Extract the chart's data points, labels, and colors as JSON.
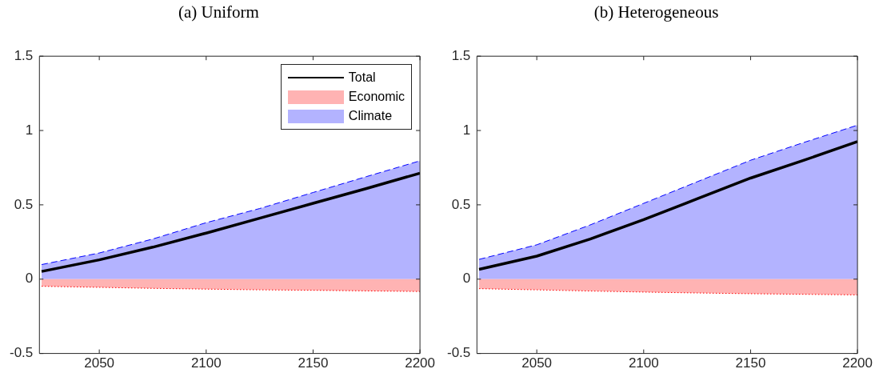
{
  "chart_data": [
    {
      "type": "area",
      "title": "(a) Uniform",
      "x": [
        2023,
        2050,
        2075,
        2100,
        2125,
        2150,
        2175,
        2200
      ],
      "xlim": [
        2022,
        2200
      ],
      "xticks": [
        2050,
        2100,
        2150,
        2200
      ],
      "ylim": [
        -0.5,
        1.5
      ],
      "yticks": [
        -0.5,
        0,
        0.5,
        1,
        1.5
      ],
      "grid": false,
      "legend": "top right",
      "series": [
        {
          "name": "Total",
          "type": "line",
          "color": "#000000",
          "values": [
            0.052,
            0.13,
            0.215,
            0.31,
            0.41,
            0.51,
            0.61,
            0.713
          ]
        },
        {
          "name": "Economic",
          "color": "#ffb3b3",
          "line_style": "dotted",
          "values": [
            -0.048,
            -0.055,
            -0.062,
            -0.067,
            -0.072,
            -0.075,
            -0.079,
            -0.083
          ]
        },
        {
          "name": "Climate",
          "color": "#b3b3ff",
          "line_style": "dashed",
          "values": [
            0.098,
            0.176,
            0.27,
            0.38,
            0.475,
            0.583,
            0.69,
            0.796
          ]
        }
      ]
    },
    {
      "type": "area",
      "title": "(b) Heterogeneous",
      "x": [
        2023,
        2050,
        2075,
        2100,
        2125,
        2150,
        2175,
        2200
      ],
      "xlim": [
        2022,
        2200
      ],
      "xticks": [
        2050,
        2100,
        2150,
        2200
      ],
      "ylim": [
        -0.5,
        1.5
      ],
      "yticks": [
        -0.5,
        0,
        0.5,
        1,
        1.5
      ],
      "grid": false,
      "legend": false,
      "series": [
        {
          "type": "line",
          "color": "#000000",
          "values": [
            0.066,
            0.155,
            0.27,
            0.4,
            0.54,
            0.68,
            0.8,
            0.926
          ]
        },
        {
          "color": "#ffb3b3",
          "line_style": "dotted",
          "values": [
            -0.064,
            -0.072,
            -0.08,
            -0.087,
            -0.093,
            -0.098,
            -0.102,
            -0.106
          ]
        },
        {
          "color": "#b3b3ff",
          "line_style": "dashed",
          "values": [
            0.133,
            0.231,
            0.365,
            0.51,
            0.655,
            0.8,
            0.92,
            1.036
          ]
        }
      ]
    }
  ]
}
